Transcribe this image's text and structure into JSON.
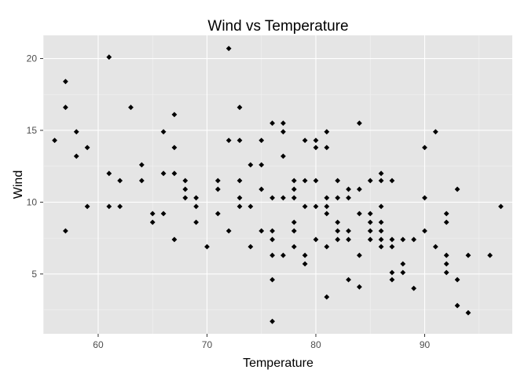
{
  "chart_data": {
    "type": "scatter",
    "title": "Wind vs Temperature",
    "xlabel": "Temperature",
    "ylabel": "Wind",
    "xlim": [
      54.95,
      98.05
    ],
    "ylim": [
      0.835,
      21.615
    ],
    "xticks": [
      60,
      70,
      80,
      90
    ],
    "yticks": [
      5,
      10,
      15,
      20
    ],
    "grid": true,
    "colors": {
      "panel": "#E5E5E5",
      "grid_major": "#FFFFFF",
      "grid_minor": "#F2F2F2",
      "point": "#000000",
      "tick_text": "#4D4D4D"
    },
    "points": [
      [
        56,
        14.3
      ],
      [
        57,
        8.0
      ],
      [
        57,
        16.6
      ],
      [
        57,
        18.4
      ],
      [
        58,
        13.2
      ],
      [
        58,
        14.9
      ],
      [
        59,
        9.7
      ],
      [
        59,
        13.8
      ],
      [
        61,
        9.7
      ],
      [
        61,
        12.0
      ],
      [
        61,
        20.1
      ],
      [
        62,
        9.7
      ],
      [
        62,
        11.5
      ],
      [
        63,
        16.6
      ],
      [
        64,
        11.5
      ],
      [
        64,
        12.6
      ],
      [
        65,
        8.6
      ],
      [
        65,
        9.2
      ],
      [
        66,
        9.2
      ],
      [
        66,
        12.0
      ],
      [
        66,
        14.9
      ],
      [
        67,
        7.4
      ],
      [
        67,
        12.0
      ],
      [
        67,
        13.8
      ],
      [
        67,
        16.1
      ],
      [
        68,
        10.3
      ],
      [
        68,
        10.9
      ],
      [
        68,
        11.5
      ],
      [
        69,
        8.6
      ],
      [
        69,
        9.7
      ],
      [
        69,
        10.3
      ],
      [
        70,
        6.9
      ],
      [
        71,
        9.2
      ],
      [
        71,
        10.9
      ],
      [
        71,
        11.5
      ],
      [
        72,
        8.0
      ],
      [
        72,
        14.3
      ],
      [
        72,
        20.7
      ],
      [
        73,
        9.7
      ],
      [
        73,
        10.3
      ],
      [
        73,
        11.5
      ],
      [
        73,
        14.3
      ],
      [
        73,
        16.6
      ],
      [
        74,
        6.9
      ],
      [
        74,
        9.7
      ],
      [
        74,
        12.6
      ],
      [
        75,
        8.0
      ],
      [
        75,
        10.9
      ],
      [
        75,
        12.6
      ],
      [
        75,
        14.3
      ],
      [
        76,
        1.7
      ],
      [
        76,
        4.6
      ],
      [
        76,
        6.3
      ],
      [
        76,
        7.4
      ],
      [
        76,
        8.0
      ],
      [
        76,
        10.3
      ],
      [
        76,
        15.5
      ],
      [
        77,
        6.3
      ],
      [
        77,
        10.3
      ],
      [
        77,
        13.2
      ],
      [
        77,
        14.9
      ],
      [
        77,
        15.5
      ],
      [
        78,
        6.9
      ],
      [
        78,
        8.0
      ],
      [
        78,
        8.6
      ],
      [
        78,
        10.3
      ],
      [
        78,
        10.9
      ],
      [
        78,
        11.5
      ],
      [
        79,
        5.7
      ],
      [
        79,
        6.3
      ],
      [
        79,
        9.7
      ],
      [
        79,
        11.5
      ],
      [
        79,
        14.3
      ],
      [
        80,
        7.4
      ],
      [
        80,
        9.7
      ],
      [
        80,
        11.5
      ],
      [
        80,
        13.8
      ],
      [
        80,
        14.3
      ],
      [
        81,
        3.4
      ],
      [
        81,
        6.9
      ],
      [
        81,
        9.2
      ],
      [
        81,
        9.7
      ],
      [
        81,
        10.3
      ],
      [
        81,
        13.8
      ],
      [
        81,
        14.9
      ],
      [
        82,
        7.4
      ],
      [
        82,
        8.0
      ],
      [
        82,
        8.6
      ],
      [
        82,
        10.3
      ],
      [
        82,
        11.5
      ],
      [
        83,
        4.6
      ],
      [
        83,
        7.4
      ],
      [
        83,
        8.0
      ],
      [
        83,
        10.3
      ],
      [
        83,
        10.9
      ],
      [
        84,
        4.1
      ],
      [
        84,
        6.3
      ],
      [
        84,
        9.2
      ],
      [
        84,
        10.9
      ],
      [
        84,
        15.5
      ],
      [
        85,
        7.4
      ],
      [
        85,
        8.0
      ],
      [
        85,
        8.6
      ],
      [
        85,
        9.2
      ],
      [
        85,
        11.5
      ],
      [
        86,
        6.9
      ],
      [
        86,
        7.4
      ],
      [
        86,
        8.0
      ],
      [
        86,
        8.6
      ],
      [
        86,
        9.7
      ],
      [
        86,
        11.5
      ],
      [
        86,
        12.0
      ],
      [
        87,
        4.6
      ],
      [
        87,
        5.1
      ],
      [
        87,
        6.9
      ],
      [
        87,
        7.4
      ],
      [
        87,
        11.5
      ],
      [
        88,
        5.1
      ],
      [
        88,
        5.7
      ],
      [
        88,
        7.4
      ],
      [
        89,
        4.0
      ],
      [
        89,
        7.4
      ],
      [
        90,
        8.0
      ],
      [
        90,
        10.3
      ],
      [
        90,
        13.8
      ],
      [
        91,
        6.9
      ],
      [
        91,
        14.9
      ],
      [
        92,
        5.1
      ],
      [
        92,
        5.7
      ],
      [
        92,
        6.3
      ],
      [
        92,
        8.6
      ],
      [
        92,
        9.2
      ],
      [
        93,
        2.8
      ],
      [
        93,
        4.6
      ],
      [
        93,
        10.9
      ],
      [
        94,
        2.3
      ],
      [
        94,
        6.3
      ],
      [
        96,
        6.3
      ],
      [
        97,
        9.7
      ]
    ]
  }
}
